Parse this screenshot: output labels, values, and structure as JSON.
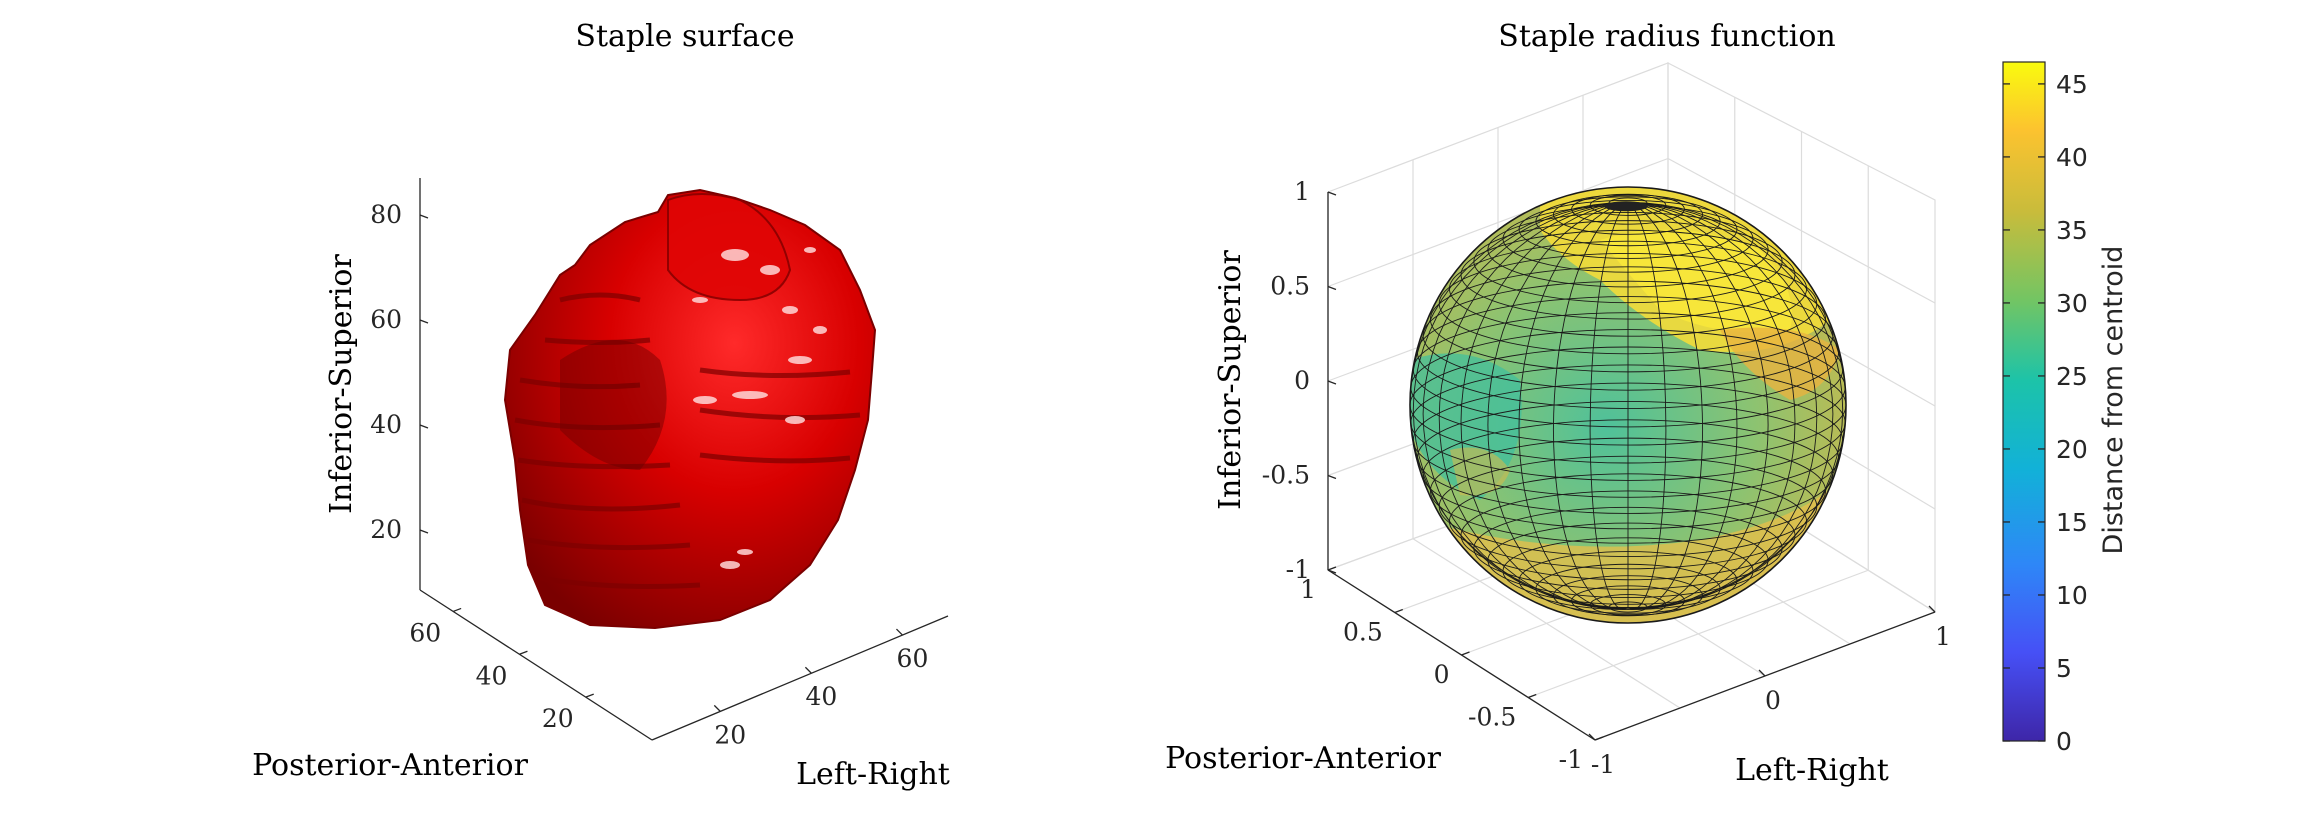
{
  "chart_data": [
    {
      "type": "surface",
      "title": "Staple surface",
      "xlabel": "Left-Right",
      "ylabel": "Posterior-Anterior",
      "zlabel": "Inferior-Superior",
      "x_ticks": [
        "20",
        "40",
        "60"
      ],
      "y_ticks": [
        "20",
        "40",
        "60"
      ],
      "z_ticks": [
        "20",
        "40",
        "60",
        "80"
      ],
      "surface_color": "#d40000",
      "grid": false
    },
    {
      "type": "sphere",
      "title": "Staple radius function",
      "xlabel": "Left-Right",
      "ylabel": "Posterior-Anterior",
      "zlabel": "Inferior-Superior",
      "x_ticks": [
        "-1",
        "0",
        "1"
      ],
      "y_ticks": [
        "-1",
        "-0.5",
        "0",
        "0.5",
        "1"
      ],
      "z_ticks": [
        "-1",
        "-0.5",
        "0",
        "0.5",
        "1"
      ],
      "grid": true,
      "colorbar": {
        "label": "Distance from centroid",
        "ticks": [
          "0",
          "5",
          "10",
          "15",
          "20",
          "25",
          "30",
          "35",
          "40",
          "45"
        ],
        "range": [
          0,
          46.5
        ],
        "colormap": "parula"
      }
    }
  ]
}
